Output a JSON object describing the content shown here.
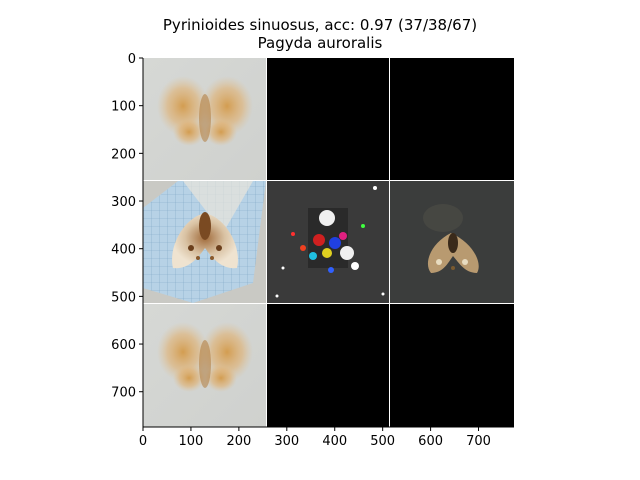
{
  "figure": {
    "title_line1": "Pyrinioides sinuosus, acc: 0.97 (37/38/67)",
    "title_line2": "Pagyda auroralis"
  },
  "axes": {
    "x_ticks": [
      "0",
      "100",
      "200",
      "300",
      "400",
      "500",
      "600",
      "700"
    ],
    "y_ticks": [
      "0",
      "100",
      "200",
      "300",
      "400",
      "500",
      "600",
      "700"
    ],
    "x_range": [
      0,
      774
    ],
    "y_range": [
      0,
      774
    ]
  },
  "grid": {
    "rows": 3,
    "cols": 3,
    "cells": [
      {
        "row": 0,
        "col": 0,
        "content": "blurred-moth-image"
      },
      {
        "row": 0,
        "col": 1,
        "content": "black"
      },
      {
        "row": 0,
        "col": 2,
        "content": "black"
      },
      {
        "row": 1,
        "col": 0,
        "content": "moth-photo"
      },
      {
        "row": 1,
        "col": 1,
        "content": "noisy-saliency-map"
      },
      {
        "row": 1,
        "col": 2,
        "content": "masked-moth-image"
      },
      {
        "row": 2,
        "col": 0,
        "content": "blurred-moth-image"
      },
      {
        "row": 2,
        "col": 1,
        "content": "black"
      },
      {
        "row": 2,
        "col": 2,
        "content": "black"
      }
    ]
  },
  "colors": {
    "black_cell": "#000000",
    "separator": "#ffffff",
    "blurred_bg": "#d4d6d3",
    "moth_orange": "#d8a056",
    "photo_blue": "#a9c7dc",
    "dark_bg": "#3a3a3a"
  }
}
